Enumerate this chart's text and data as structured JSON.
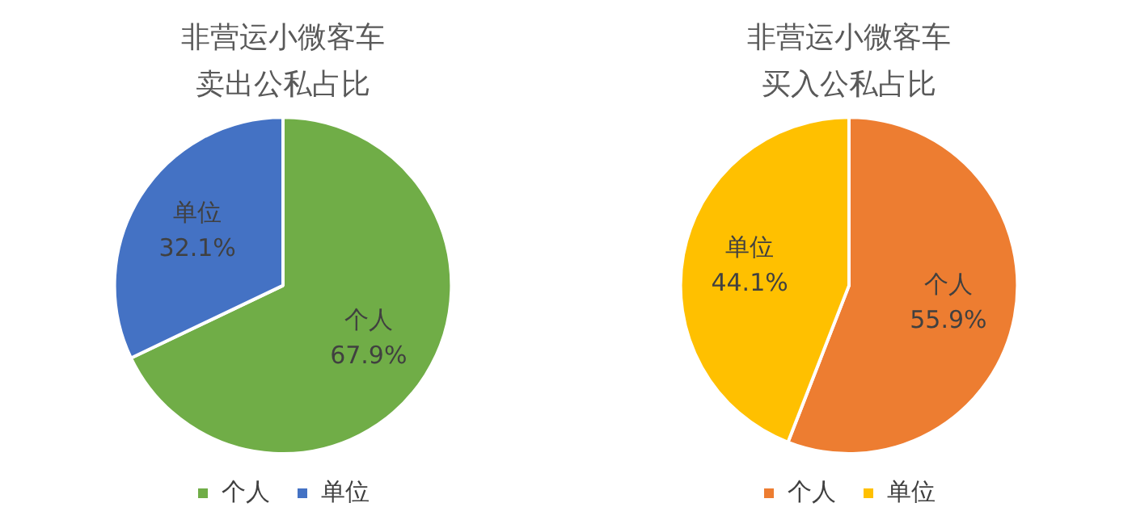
{
  "chart_data": [
    {
      "type": "pie",
      "title": "非营运小微客车卖出公私占比",
      "categories": [
        "个人",
        "单位"
      ],
      "values": [
        67.9,
        32.1
      ],
      "colors": [
        "#70ad47",
        "#4472c4"
      ],
      "value_labels": [
        "67.9%",
        "32.1%"
      ],
      "legend": "bottom"
    },
    {
      "type": "pie",
      "title": "非营运小微客车买入公私占比",
      "categories": [
        "个人",
        "单位"
      ],
      "values": [
        55.9,
        44.1
      ],
      "colors": [
        "#ed7d31",
        "#ffc000"
      ],
      "value_labels": [
        "55.9%",
        "44.1%"
      ],
      "legend": "bottom"
    }
  ]
}
